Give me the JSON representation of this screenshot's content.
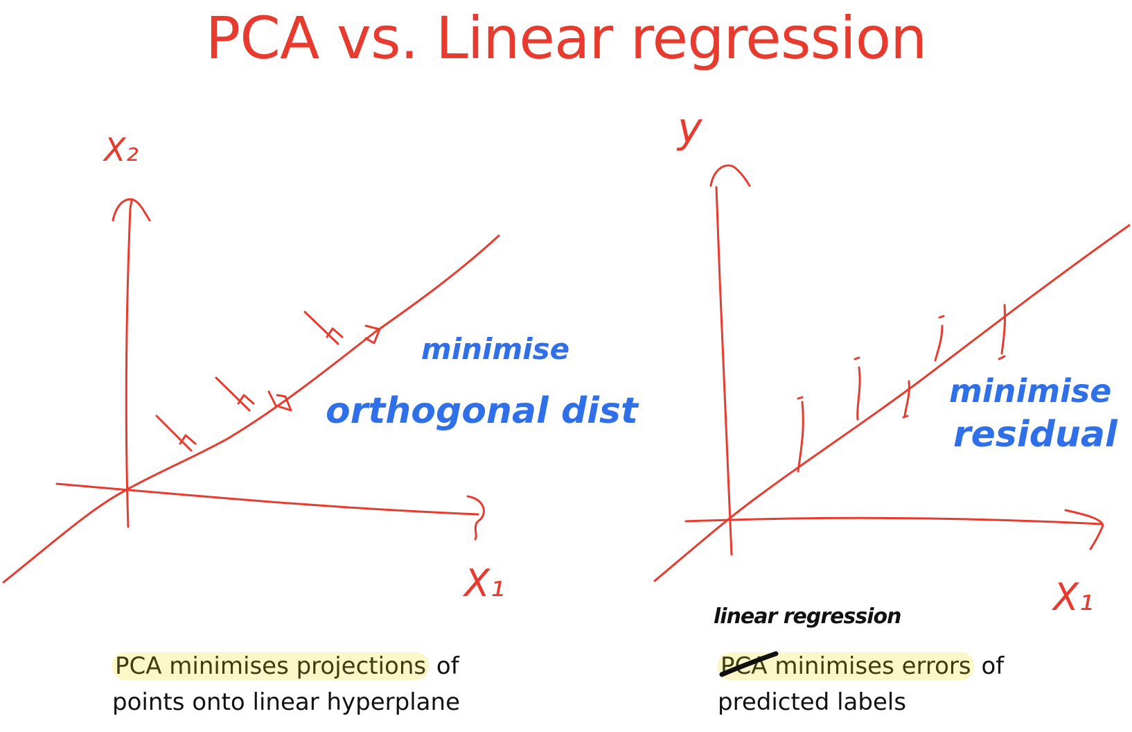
{
  "title": "PCA vs. Linear regression",
  "left_panel": {
    "axis_y_label": "X₂",
    "axis_x_label": "X₁",
    "annotation_line1": "minimise",
    "annotation_line2": "orthogonal dist",
    "caption_highlight": "PCA minimises projections",
    "caption_rest1": " of",
    "caption_line2": "points onto linear hyperplane"
  },
  "right_panel": {
    "axis_y_label": "y",
    "axis_x_label": "X₁",
    "annotation_line1": "minimise",
    "annotation_line2": "residual",
    "handwritten_correction": "linear regression",
    "caption_struck": "PCA",
    "caption_highlight": " minimises errors",
    "caption_rest1": " of",
    "caption_line2": "predicted labels"
  },
  "colors": {
    "ink_red": "#e63b2e",
    "ink_blue": "#2f6fe8",
    "highlight": "#fbf7c9"
  }
}
